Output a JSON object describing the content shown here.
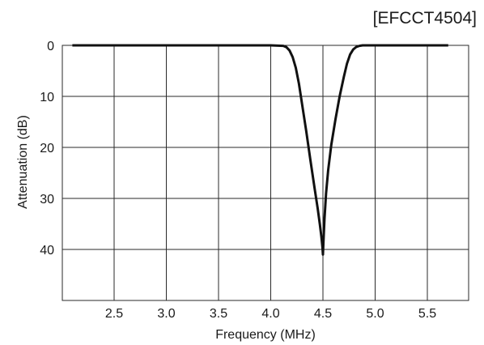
{
  "chart_data": {
    "type": "line",
    "title": "[EFCCT4504]",
    "xlabel": "Frequency (MHz)",
    "ylabel": "Attenuation (dB)",
    "xlim": [
      2.0,
      5.8
    ],
    "ylim": [
      0,
      50
    ],
    "y_inverted": true,
    "grid": true,
    "x_ticks": [
      2.5,
      3.0,
      3.5,
      4.0,
      4.5,
      5.0,
      5.5
    ],
    "x_tick_labels": [
      "2.5",
      "3.0",
      "3.5",
      "4.0",
      "4.5",
      "5.0",
      "5.5"
    ],
    "y_ticks": [
      0,
      10,
      20,
      30,
      40
    ],
    "y_tick_labels": [
      "0",
      "10",
      "20",
      "30",
      "40"
    ],
    "line_color": "#111111",
    "series": [
      {
        "x": [
          2.1,
          2.5,
          3.0,
          3.5,
          4.0,
          4.12,
          4.15,
          4.18,
          4.21,
          4.24,
          4.27,
          4.3,
          4.34,
          4.38,
          4.42,
          4.45,
          4.47,
          4.485,
          4.495,
          4.5,
          4.505,
          4.515,
          4.53,
          4.55,
          4.58,
          4.62,
          4.66,
          4.7,
          4.73,
          4.76,
          4.79,
          4.82,
          4.85,
          4.88,
          5.0,
          5.5,
          5.7
        ],
        "values": [
          0,
          0,
          0,
          0,
          0,
          0.1,
          0.35,
          1.0,
          2.3,
          4.4,
          7.5,
          11.5,
          16.8,
          22.5,
          28.0,
          32.0,
          35.0,
          37.5,
          39.5,
          41.0,
          38.5,
          34.0,
          29.0,
          24.5,
          19.5,
          14.5,
          10.0,
          6.2,
          3.6,
          1.8,
          0.8,
          0.3,
          0.1,
          0,
          0,
          0,
          0
        ]
      }
    ]
  }
}
